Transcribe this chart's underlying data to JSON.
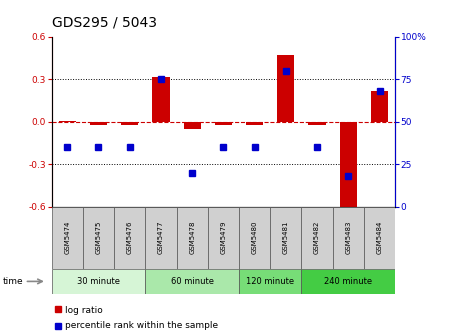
{
  "title": "GDS295 / 5043",
  "samples": [
    "GSM5474",
    "GSM5475",
    "GSM5476",
    "GSM5477",
    "GSM5478",
    "GSM5479",
    "GSM5480",
    "GSM5481",
    "GSM5482",
    "GSM5483",
    "GSM5484"
  ],
  "log_ratios": [
    0.005,
    -0.02,
    -0.02,
    0.32,
    -0.05,
    -0.02,
    -0.02,
    0.47,
    -0.02,
    -0.65,
    0.22
  ],
  "percentile_ranks": [
    35,
    35,
    35,
    75,
    20,
    35,
    35,
    80,
    35,
    18,
    68
  ],
  "groups": [
    {
      "label": "30 minute",
      "start": 0,
      "end": 3,
      "color": "#d6f5d6"
    },
    {
      "label": "60 minute",
      "start": 3,
      "end": 6,
      "color": "#aae8aa"
    },
    {
      "label": "120 minute",
      "start": 6,
      "end": 8,
      "color": "#77dd77"
    },
    {
      "label": "240 minute",
      "start": 8,
      "end": 11,
      "color": "#44cc44"
    }
  ],
  "ylim_left": [
    -0.6,
    0.6
  ],
  "ylim_right": [
    0,
    100
  ],
  "yticks_left": [
    -0.6,
    -0.3,
    0.0,
    0.3,
    0.6
  ],
  "yticks_right": [
    0,
    25,
    50,
    75,
    100
  ],
  "bar_color": "#cc0000",
  "dot_color": "#0000cc",
  "hline_color": "#cc0000",
  "grid_color": "black",
  "plot_bg": "white",
  "title_fontsize": 10,
  "legend_log_ratio": "log ratio",
  "legend_percentile": "percentile rank within the sample",
  "time_label": "time"
}
